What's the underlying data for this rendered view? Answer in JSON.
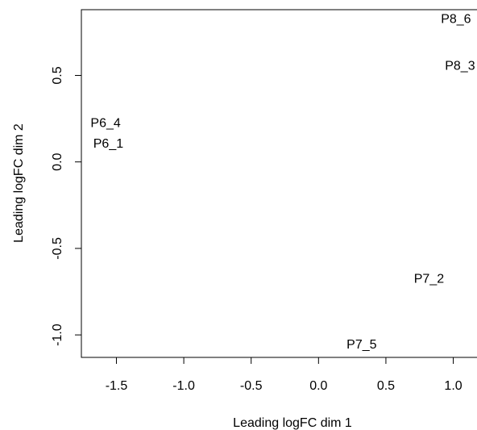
{
  "chart_data": {
    "type": "scatter",
    "title": "",
    "xlabel": "Leading logFC dim 1",
    "ylabel": "Leading logFC dim 2",
    "xlim": [
      -1.76,
      1.2
    ],
    "ylim": [
      -1.13,
      0.88
    ],
    "xticks": [
      -1.5,
      -1.0,
      -0.5,
      0.0,
      0.5,
      1.0
    ],
    "xtick_labels": [
      "-1.5",
      "-1.0",
      "-0.5",
      "0.0",
      "0.5",
      "1.0"
    ],
    "yticks": [
      -1.0,
      -0.5,
      0.0,
      0.5
    ],
    "ytick_labels": [
      "-1.0",
      "-0.5",
      "0.0",
      "0.5"
    ],
    "grid": false,
    "points": [
      {
        "label": "P8_6",
        "x": 1.02,
        "y": 0.83
      },
      {
        "label": "P8_3",
        "x": 1.05,
        "y": 0.56
      },
      {
        "label": "P6_4",
        "x": -1.58,
        "y": 0.23
      },
      {
        "label": "P6_1",
        "x": -1.56,
        "y": 0.11
      },
      {
        "label": "P7_2",
        "x": 0.82,
        "y": -0.67
      },
      {
        "label": "P7_5",
        "x": 0.32,
        "y": -1.05
      }
    ]
  }
}
